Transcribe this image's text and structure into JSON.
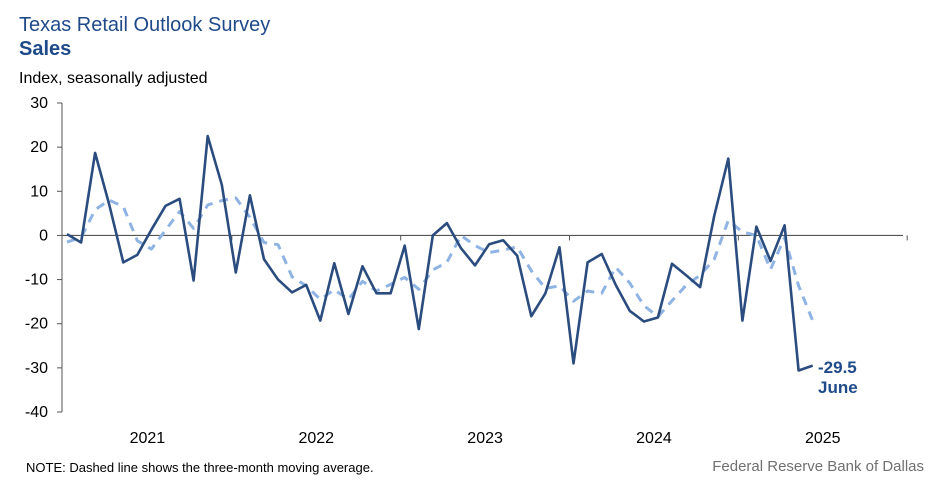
{
  "chart_data": {
    "type": "line",
    "title": "Texas Retail Outlook Survey",
    "subtitle": "Sales",
    "ylabel": "Index, seasonally adjusted",
    "xlabel": "",
    "ylim": [
      -40,
      30
    ],
    "yticks": [
      30,
      20,
      10,
      0,
      -10,
      -20,
      -30,
      -40
    ],
    "xtick_labels": [
      "2021",
      "2022",
      "2023",
      "2024",
      "2025"
    ],
    "x_start": "2021-01",
    "x_end": "2025-06",
    "grid": false,
    "series": [
      {
        "style": "solid",
        "color": "#2b4c7e",
        "values": [
          0.3,
          -1.6,
          18.7,
          7,
          -6.1,
          -4.4,
          1.3,
          6.7,
          8.3,
          -10.2,
          22.5,
          11.5,
          -8.4,
          9.1,
          -5.4,
          -10,
          -12.9,
          -11.2,
          -19.3,
          -6.3,
          -17.8,
          -7.0,
          -13.1,
          -13.1,
          -2.3,
          -21.2,
          0,
          2.8,
          -2.9,
          -6.8,
          -2,
          -1.1,
          -4.6,
          -18.3,
          -13.1,
          -2.7,
          -29,
          -6.1,
          -4.2,
          -11.2,
          -17.1,
          -19.5,
          -18.6,
          -6.4,
          -9,
          -11.7,
          4.4,
          17.4,
          -19.3,
          2,
          -5.8,
          2.3,
          -30.6,
          -29.5
        ]
      },
      {
        "style": "dashed",
        "color": "#8fb3e3",
        "values": [
          -1.5,
          -0.5,
          5.8,
          8.0,
          6.5,
          -1.2,
          -3.1,
          1.2,
          5.4,
          1.6,
          6.9,
          7.9,
          8.5,
          4.1,
          -1.6,
          -2.1,
          -9.4,
          -11.4,
          -14.5,
          -12.3,
          -14.5,
          -10.4,
          -12.6,
          -11.1,
          -9.5,
          -12.2,
          -7.8,
          -6.1,
          0,
          -2.3,
          -3.9,
          -3.3,
          -2.6,
          -8,
          -12,
          -11.4,
          -14.9,
          -12.6,
          -13.1,
          -7.2,
          -10.8,
          -15.9,
          -18.4,
          -14.8,
          -11.3,
          -9,
          -5.4,
          3.4,
          0.8,
          0,
          -7.7,
          -0.5,
          -11.4,
          -19.3
        ]
      }
    ],
    "annotation": {
      "value": "-29.5",
      "label": "June"
    }
  },
  "note": "NOTE: Dashed line shows the three-month  moving average.",
  "source": "Federal Reserve Bank of Dallas"
}
